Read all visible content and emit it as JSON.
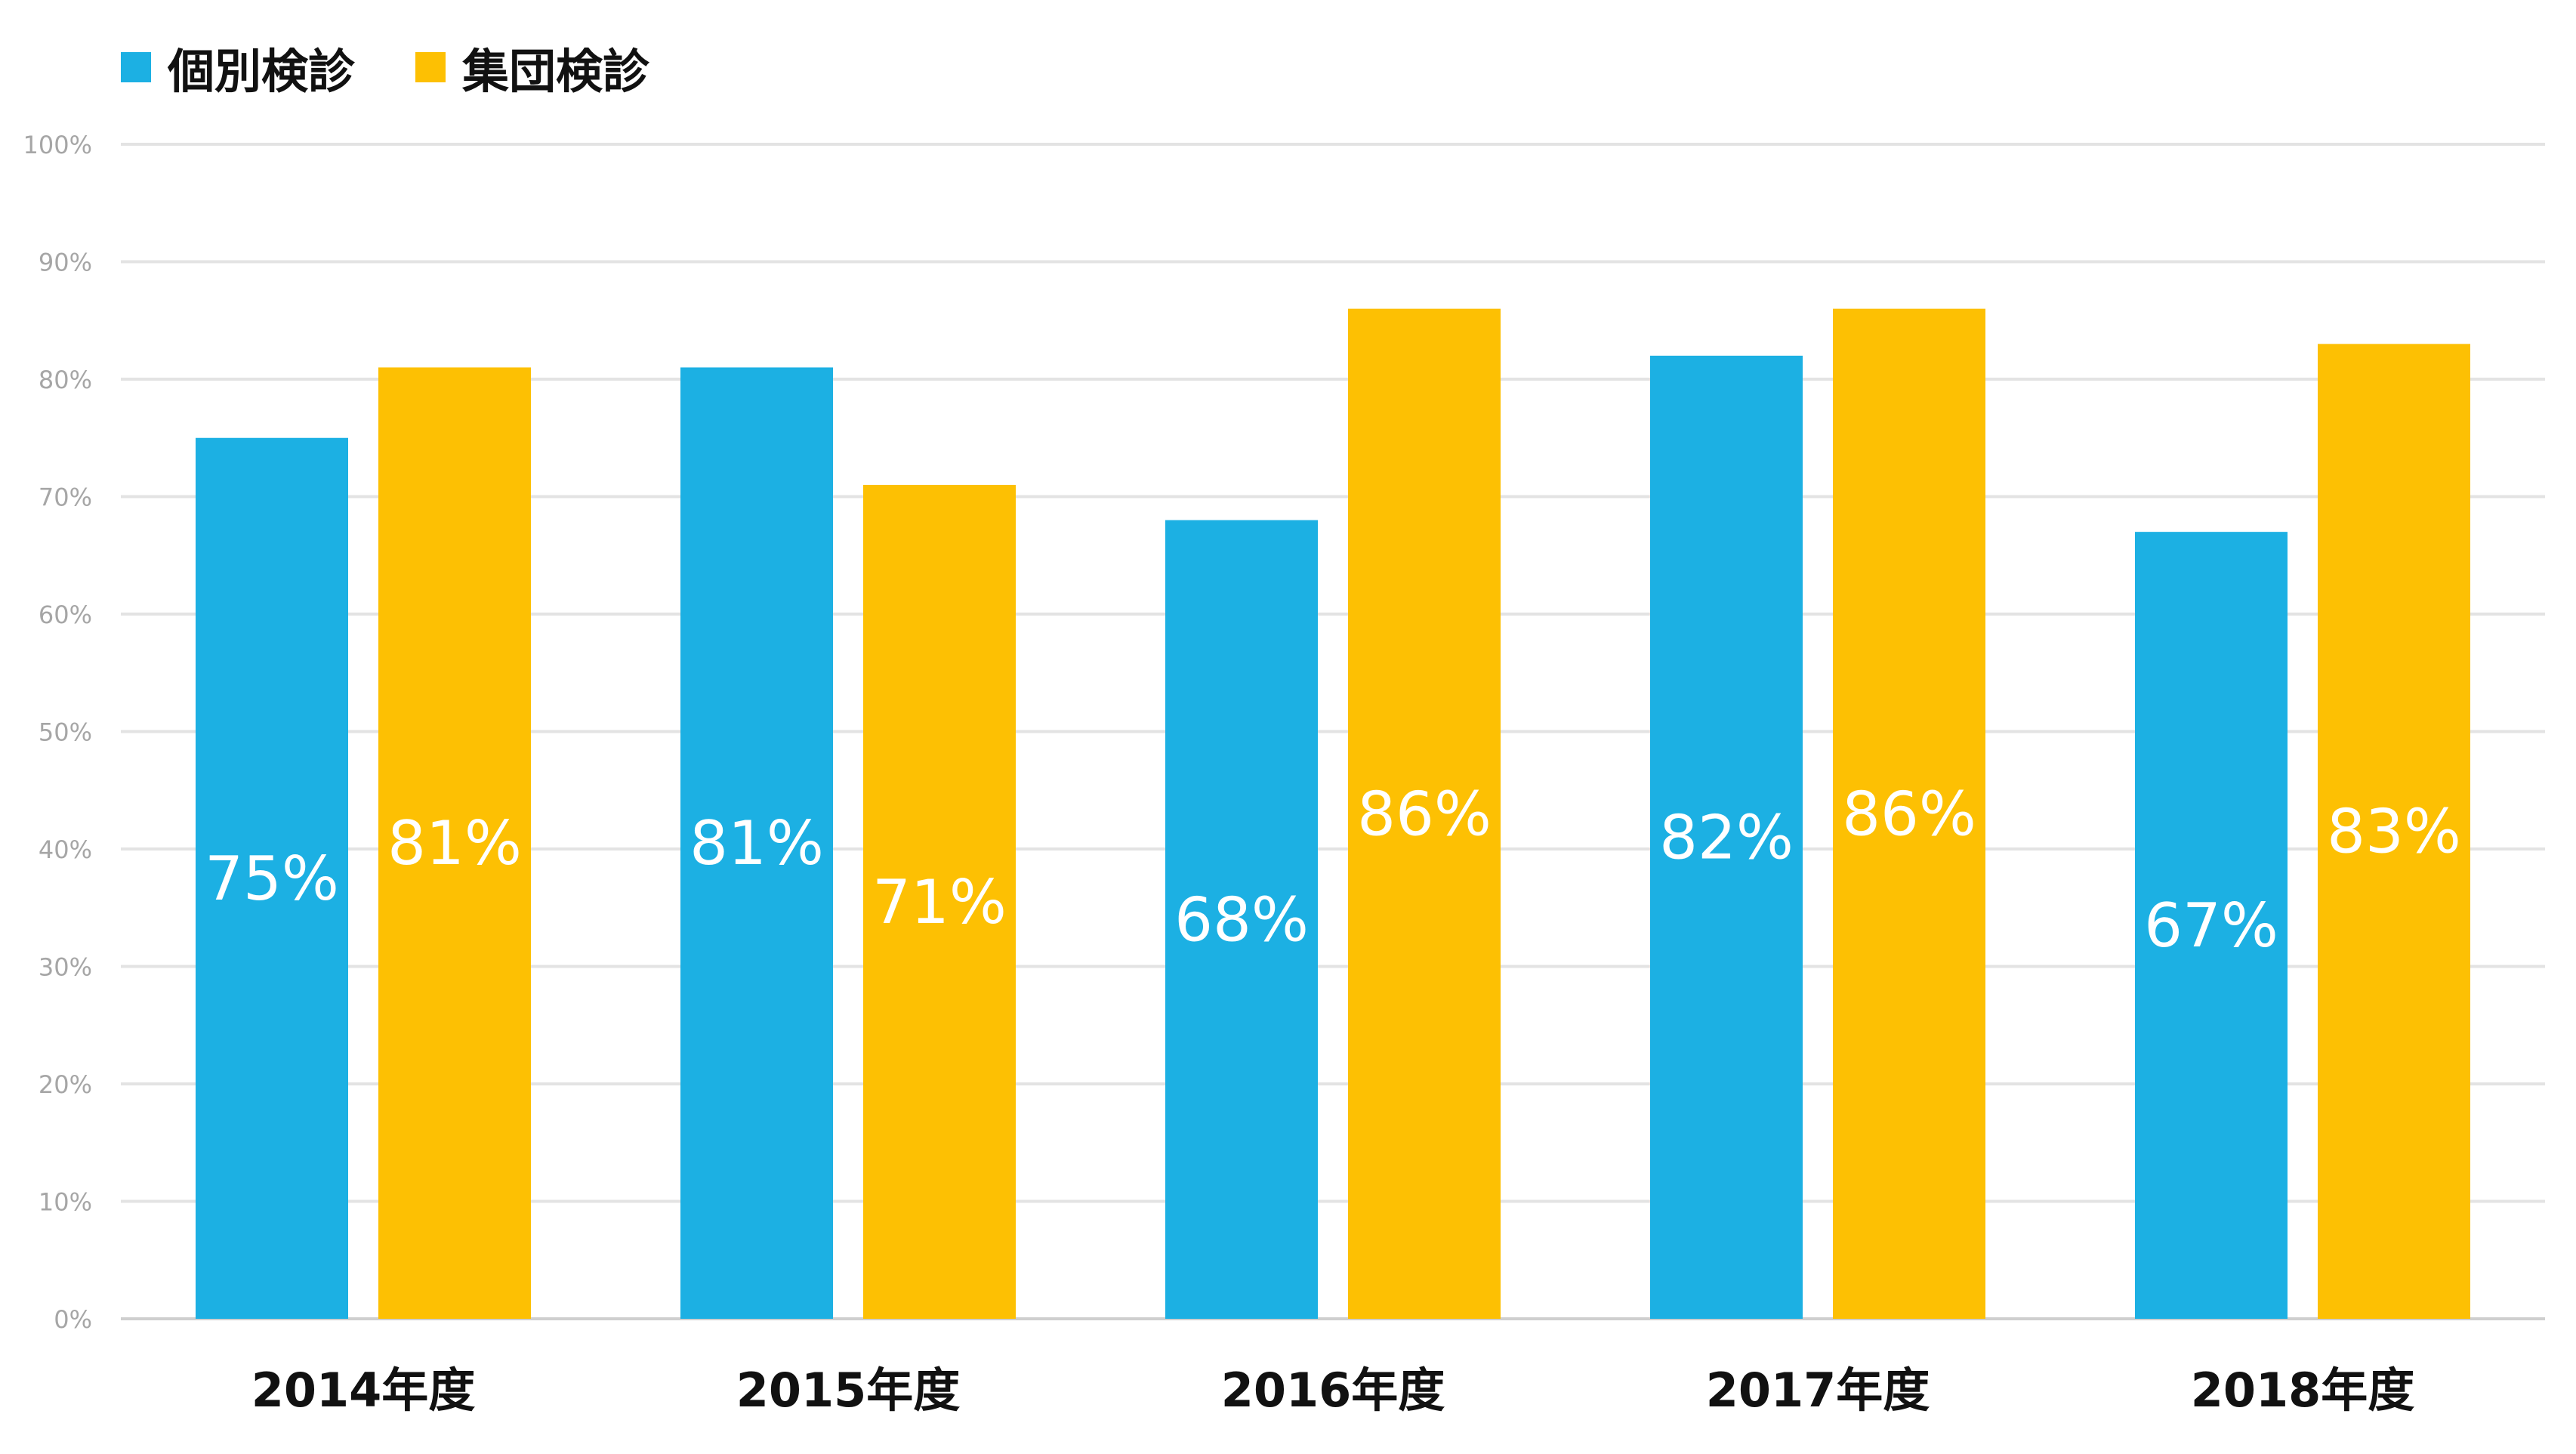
{
  "chart_data": {
    "type": "bar",
    "categories": [
      "2014年度",
      "2015年度",
      "2016年度",
      "2017年度",
      "2018年度"
    ],
    "series": [
      {
        "name": "個別検診",
        "color": "#1cb0e3",
        "values": [
          75,
          81,
          68,
          82,
          67
        ],
        "data_labels": [
          "75%",
          "81%",
          "68%",
          "82%",
          "67%"
        ]
      },
      {
        "name": "集団検診",
        "color": "#fdc003",
        "values": [
          81,
          71,
          86,
          86,
          83
        ],
        "data_labels": [
          "81%",
          "71%",
          "86%",
          "86%",
          "83%"
        ]
      }
    ],
    "ylim": [
      0,
      100
    ],
    "y_ticks": [
      0,
      10,
      20,
      30,
      40,
      50,
      60,
      70,
      80,
      90,
      100
    ],
    "y_tick_labels": [
      "0%",
      "10%",
      "20%",
      "30%",
      "40%",
      "50%",
      "60%",
      "70%",
      "80%",
      "90%",
      "100%"
    ],
    "grid": true,
    "legend_position": "top-left",
    "title": "",
    "xlabel": "",
    "ylabel": ""
  }
}
